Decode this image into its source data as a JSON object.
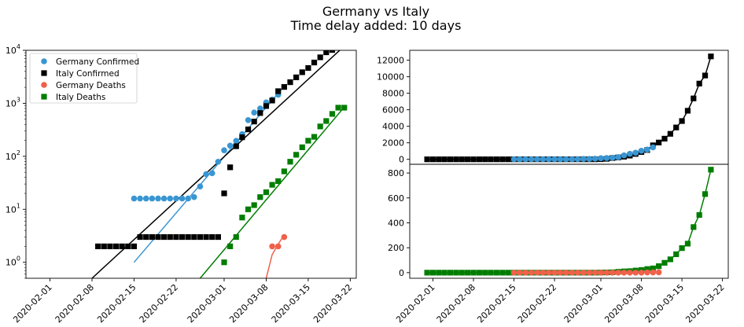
{
  "figure": {
    "title_lines": [
      "Germany vs Italy",
      "Time delay added: 10 days"
    ]
  },
  "chart_data": [
    {
      "type": "scatter",
      "name": "log-comparison",
      "yscale": "log",
      "xlim": [
        "2020-01-28",
        "2020-03-23"
      ],
      "ylim": [
        0.5,
        10000
      ],
      "y_ticks": [
        1,
        10,
        100,
        1000,
        10000
      ],
      "y_tick_labels": [
        {
          "base": "10",
          "exp": "0"
        },
        {
          "base": "10",
          "exp": "1"
        },
        {
          "base": "10",
          "exp": "2"
        },
        {
          "base": "10",
          "exp": "3"
        },
        {
          "base": "10",
          "exp": "4"
        }
      ],
      "x_ticks": [
        "2020-02-01",
        "2020-02-08",
        "2020-02-15",
        "2020-02-22",
        "2020-03-01",
        "2020-03-08",
        "2020-03-15",
        "2020-03-22"
      ],
      "legend": {
        "position": "upper-left"
      },
      "series": [
        {
          "name": "Germany Confirmed",
          "color": "#3a96d2",
          "marker": "circle",
          "x": [
            "2020-02-15",
            "2020-02-16",
            "2020-02-17",
            "2020-02-18",
            "2020-02-19",
            "2020-02-20",
            "2020-02-21",
            "2020-02-22",
            "2020-02-23",
            "2020-02-24",
            "2020-02-25",
            "2020-02-26",
            "2020-02-27",
            "2020-02-28",
            "2020-02-29",
            "2020-03-01",
            "2020-03-02",
            "2020-03-03",
            "2020-03-04",
            "2020-03-05",
            "2020-03-06",
            "2020-03-07",
            "2020-03-08",
            "2020-03-09",
            "2020-03-10"
          ],
          "y": [
            16,
            16,
            16,
            16,
            16,
            16,
            16,
            16,
            16,
            16,
            17,
            27,
            46,
            48,
            79,
            130,
            159,
            196,
            262,
            482,
            670,
            799,
            1040,
            1176,
            1457
          ],
          "fit": {
            "x": [
              "2020-02-15",
              "2020-03-11"
            ],
            "y": [
              1,
              2100
            ]
          }
        },
        {
          "name": "Italy Confirmed",
          "color": "#000000",
          "marker": "square",
          "x": [
            "2020-02-09",
            "2020-02-10",
            "2020-02-11",
            "2020-02-12",
            "2020-02-13",
            "2020-02-14",
            "2020-02-15",
            "2020-02-16",
            "2020-02-17",
            "2020-02-18",
            "2020-02-19",
            "2020-02-20",
            "2020-02-21",
            "2020-02-22",
            "2020-02-23",
            "2020-02-24",
            "2020-02-25",
            "2020-02-26",
            "2020-02-27",
            "2020-02-28",
            "2020-02-29",
            "2020-03-01",
            "2020-03-02",
            "2020-03-03",
            "2020-03-04",
            "2020-03-05",
            "2020-03-06",
            "2020-03-07",
            "2020-03-08",
            "2020-03-09",
            "2020-03-10",
            "2020-03-11",
            "2020-03-12",
            "2020-03-13",
            "2020-03-14",
            "2020-03-15",
            "2020-03-16",
            "2020-03-17",
            "2020-03-18",
            "2020-03-19",
            "2020-03-20"
          ],
          "y": [
            2,
            2,
            2,
            2,
            2,
            2,
            2,
            3,
            3,
            3,
            3,
            3,
            3,
            3,
            3,
            3,
            3,
            3,
            3,
            3,
            3,
            20,
            62,
            155,
            229,
            322,
            453,
            655,
            888,
            1128,
            1694,
            2036,
            2502,
            3089,
            3858,
            4636,
            5883,
            7375,
            9172,
            10149,
            12462
          ],
          "fit": {
            "x": [
              "2020-02-08",
              "2020-03-21"
            ],
            "y": [
              0.5,
              12000
            ]
          }
        },
        {
          "name": "Germany Deaths",
          "color": "#f0604a",
          "marker": "circle",
          "x": [
            "2020-03-09",
            "2020-03-10",
            "2020-03-11"
          ],
          "y": [
            2,
            2,
            3
          ],
          "fit": {
            "x": [
              "2020-03-08",
              "2020-03-09",
              "2020-03-10",
              "2020-03-11"
            ],
            "y": [
              0.5,
              1.4,
              2.2,
              3.3
            ]
          }
        },
        {
          "name": "Italy Deaths",
          "color": "#007d00",
          "marker": "square",
          "x": [
            "2020-03-01",
            "2020-03-02",
            "2020-03-03",
            "2020-03-04",
            "2020-03-05",
            "2020-03-06",
            "2020-03-07",
            "2020-03-08",
            "2020-03-09",
            "2020-03-10",
            "2020-03-11",
            "2020-03-12",
            "2020-03-13",
            "2020-03-14",
            "2020-03-15",
            "2020-03-16",
            "2020-03-17",
            "2020-03-18",
            "2020-03-19",
            "2020-03-20",
            "2020-03-21"
          ],
          "y": [
            1,
            2,
            3,
            7,
            10,
            12,
            17,
            21,
            29,
            34,
            52,
            79,
            107,
            148,
            197,
            233,
            366,
            463,
            631,
            827,
            827
          ],
          "fit": {
            "x": [
              "2020-02-26",
              "2020-03-21"
            ],
            "y": [
              0.5,
              850
            ]
          }
        }
      ]
    },
    {
      "type": "line",
      "name": "linear-confirmed",
      "ylim": [
        -600,
        13200
      ],
      "y_ticks": [
        0,
        2000,
        4000,
        6000,
        8000,
        10000,
        12000
      ],
      "xlim": [
        "2020-01-28",
        "2020-03-23"
      ],
      "series": [
        {
          "name": "Italy Confirmed",
          "color": "#000000",
          "marker": "square",
          "x": [
            "2020-01-31",
            "2020-02-01",
            "2020-02-02",
            "2020-02-03",
            "2020-02-04",
            "2020-02-05",
            "2020-02-06",
            "2020-02-07",
            "2020-02-08",
            "2020-02-09",
            "2020-02-10",
            "2020-02-11",
            "2020-02-12",
            "2020-02-13",
            "2020-02-14",
            "2020-02-15",
            "2020-02-16",
            "2020-02-17",
            "2020-02-18",
            "2020-02-19",
            "2020-02-20",
            "2020-02-21",
            "2020-02-22",
            "2020-02-23",
            "2020-02-24",
            "2020-02-25",
            "2020-02-26",
            "2020-02-27",
            "2020-02-28",
            "2020-02-29",
            "2020-03-01",
            "2020-03-02",
            "2020-03-03",
            "2020-03-04",
            "2020-03-05",
            "2020-03-06",
            "2020-03-07",
            "2020-03-08",
            "2020-03-09",
            "2020-03-10",
            "2020-03-11",
            "2020-03-12",
            "2020-03-13",
            "2020-03-14",
            "2020-03-15",
            "2020-03-16",
            "2020-03-17",
            "2020-03-18",
            "2020-03-19",
            "2020-03-20"
          ],
          "y": [
            0,
            0,
            0,
            0,
            0,
            0,
            0,
            0,
            0,
            2,
            2,
            2,
            2,
            2,
            2,
            2,
            3,
            3,
            3,
            3,
            3,
            3,
            3,
            3,
            3,
            3,
            3,
            3,
            3,
            3,
            20,
            62,
            155,
            229,
            322,
            453,
            655,
            888,
            1128,
            1694,
            2036,
            2502,
            3089,
            3858,
            4636,
            5883,
            7375,
            9172,
            10149,
            12462
          ]
        },
        {
          "name": "Germany Confirmed",
          "color": "#3a96d2",
          "marker": "circle",
          "x": [
            "2020-02-15",
            "2020-02-16",
            "2020-02-17",
            "2020-02-18",
            "2020-02-19",
            "2020-02-20",
            "2020-02-21",
            "2020-02-22",
            "2020-02-23",
            "2020-02-24",
            "2020-02-25",
            "2020-02-26",
            "2020-02-27",
            "2020-02-28",
            "2020-02-29",
            "2020-03-01",
            "2020-03-02",
            "2020-03-03",
            "2020-03-04",
            "2020-03-05",
            "2020-03-06",
            "2020-03-07",
            "2020-03-08",
            "2020-03-09",
            "2020-03-10"
          ],
          "y": [
            16,
            16,
            16,
            16,
            16,
            16,
            16,
            16,
            16,
            16,
            17,
            27,
            46,
            48,
            79,
            130,
            159,
            196,
            262,
            482,
            670,
            799,
            1040,
            1176,
            1457
          ]
        }
      ]
    },
    {
      "type": "line",
      "name": "linear-deaths",
      "ylim": [
        -45,
        870
      ],
      "y_ticks": [
        0,
        200,
        400,
        600,
        800
      ],
      "xlim": [
        "2020-01-28",
        "2020-03-23"
      ],
      "x_ticks": [
        "2020-02-01",
        "2020-02-08",
        "2020-02-15",
        "2020-02-22",
        "2020-03-01",
        "2020-03-08",
        "2020-03-15",
        "2020-03-22"
      ],
      "series": [
        {
          "name": "Italy Deaths",
          "color": "#007d00",
          "marker": "square",
          "x": [
            "2020-01-31",
            "2020-02-01",
            "2020-02-02",
            "2020-02-03",
            "2020-02-04",
            "2020-02-05",
            "2020-02-06",
            "2020-02-07",
            "2020-02-08",
            "2020-02-09",
            "2020-02-10",
            "2020-02-11",
            "2020-02-12",
            "2020-02-13",
            "2020-02-14",
            "2020-02-15",
            "2020-02-16",
            "2020-02-17",
            "2020-02-18",
            "2020-02-19",
            "2020-02-20",
            "2020-02-21",
            "2020-02-22",
            "2020-02-23",
            "2020-02-24",
            "2020-02-25",
            "2020-02-26",
            "2020-02-27",
            "2020-02-28",
            "2020-02-29",
            "2020-03-01",
            "2020-03-02",
            "2020-03-03",
            "2020-03-04",
            "2020-03-05",
            "2020-03-06",
            "2020-03-07",
            "2020-03-08",
            "2020-03-09",
            "2020-03-10",
            "2020-03-11",
            "2020-03-12",
            "2020-03-13",
            "2020-03-14",
            "2020-03-15",
            "2020-03-16",
            "2020-03-17",
            "2020-03-18",
            "2020-03-19",
            "2020-03-20"
          ],
          "y": [
            0,
            0,
            0,
            0,
            0,
            0,
            0,
            0,
            0,
            0,
            0,
            0,
            0,
            0,
            0,
            0,
            0,
            0,
            0,
            0,
            0,
            0,
            0,
            0,
            0,
            0,
            0,
            0,
            0,
            0,
            1,
            2,
            3,
            7,
            10,
            12,
            17,
            21,
            29,
            34,
            52,
            79,
            107,
            148,
            197,
            233,
            366,
            463,
            631,
            827
          ]
        },
        {
          "name": "Germany Deaths",
          "color": "#f0604a",
          "marker": "circle",
          "x": [
            "2020-02-15",
            "2020-02-16",
            "2020-02-17",
            "2020-02-18",
            "2020-02-19",
            "2020-02-20",
            "2020-02-21",
            "2020-02-22",
            "2020-02-23",
            "2020-02-24",
            "2020-02-25",
            "2020-02-26",
            "2020-02-27",
            "2020-02-28",
            "2020-02-29",
            "2020-03-01",
            "2020-03-02",
            "2020-03-03",
            "2020-03-04",
            "2020-03-05",
            "2020-03-06",
            "2020-03-07",
            "2020-03-08",
            "2020-03-09",
            "2020-03-10",
            "2020-03-11"
          ],
          "y": [
            0,
            0,
            0,
            0,
            0,
            0,
            0,
            0,
            0,
            0,
            0,
            0,
            0,
            0,
            0,
            0,
            0,
            0,
            0,
            0,
            0,
            0,
            0,
            2,
            2,
            3
          ]
        }
      ]
    }
  ]
}
